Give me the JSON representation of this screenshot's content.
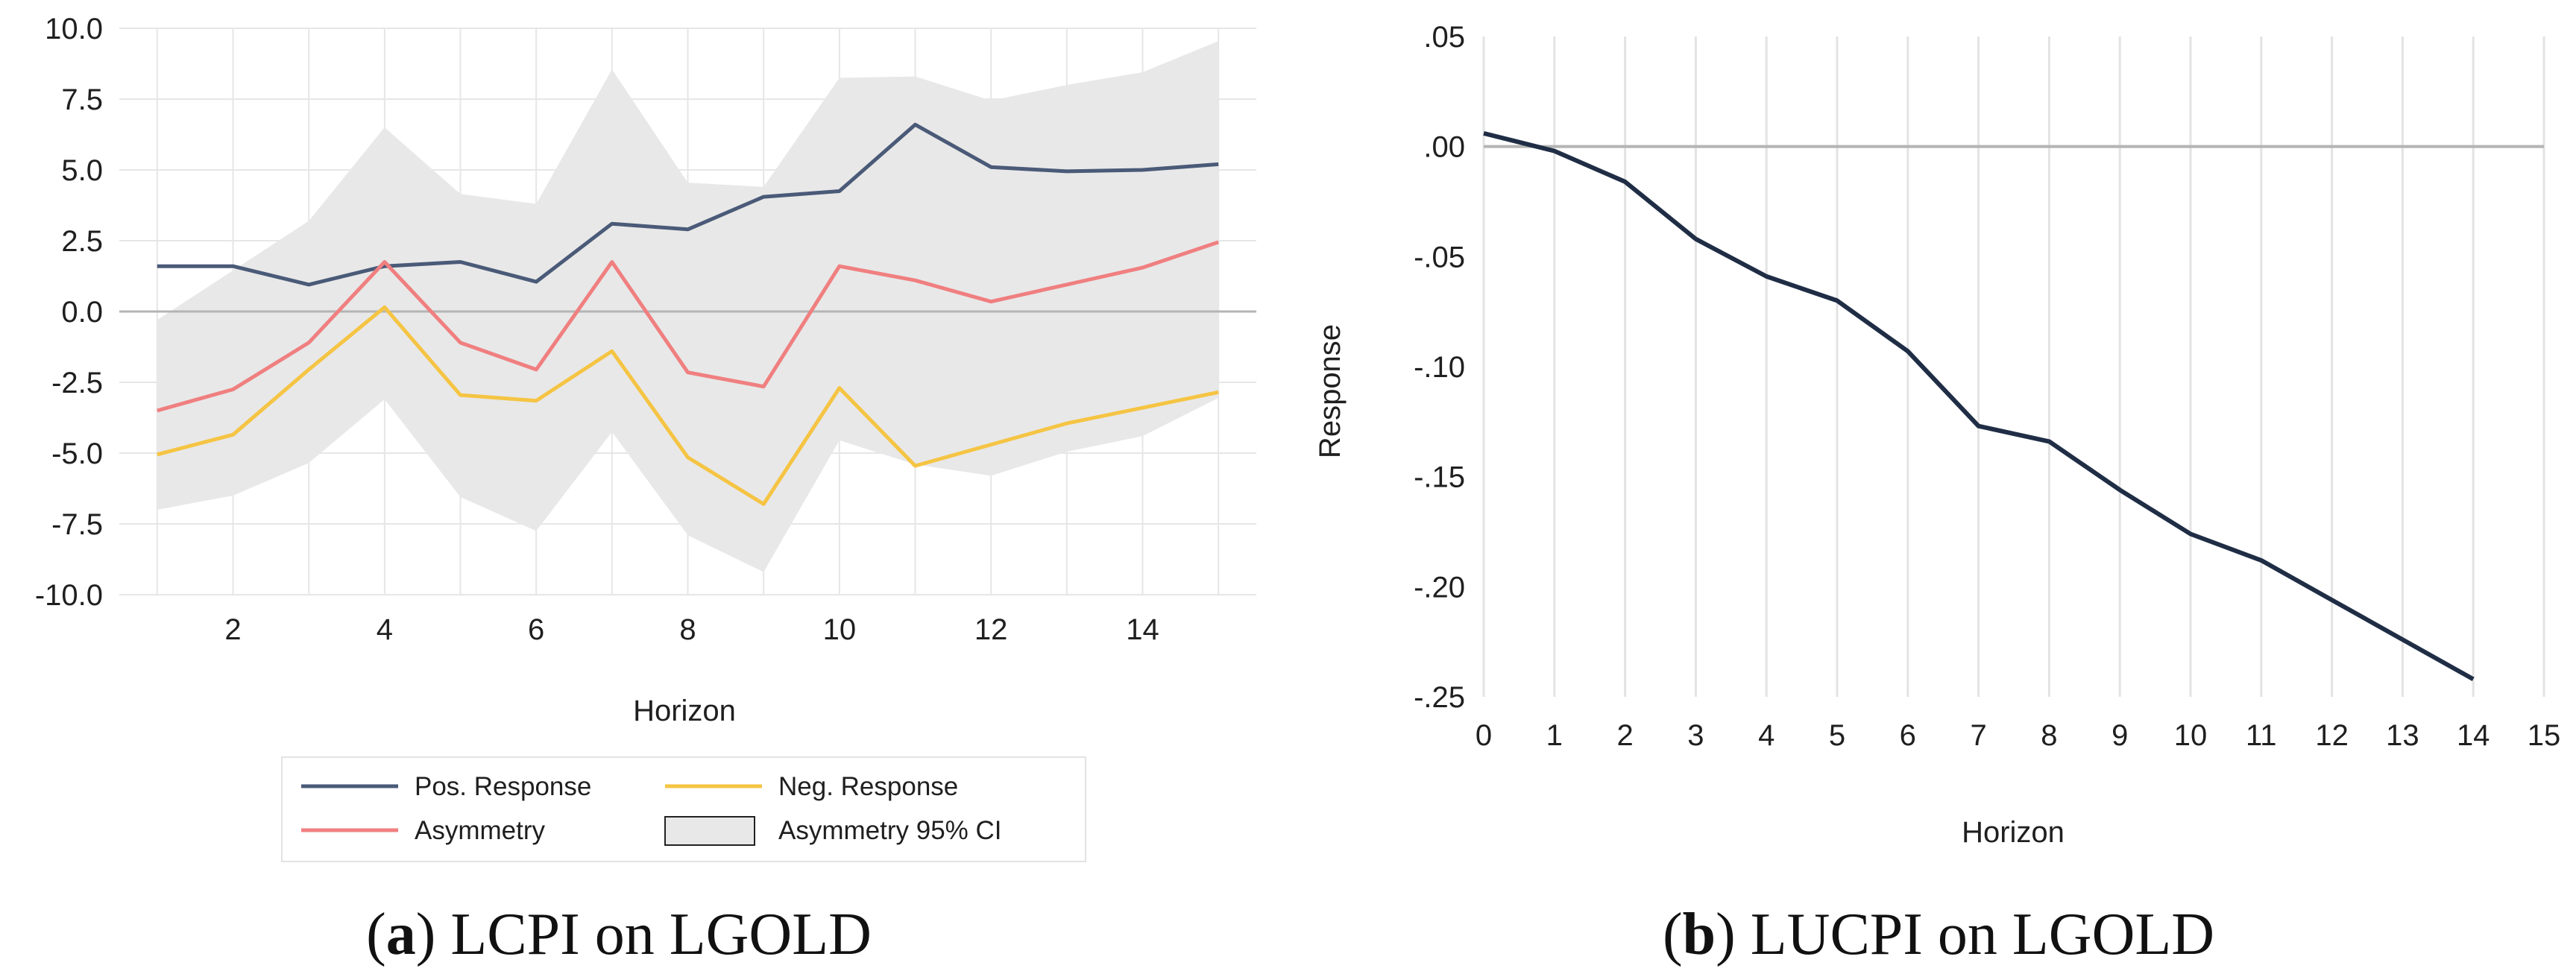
{
  "chart_data": [
    {
      "id": "a",
      "type": "line",
      "caption_letter": "a",
      "caption_text": "LCPI on LGOLD",
      "title": "",
      "xlabel": "Horizon",
      "ylabel": "",
      "xlim": [
        0.5,
        15.5
      ],
      "ylim": [
        -10,
        10
      ],
      "xticks": [
        2,
        4,
        6,
        8,
        10,
        12,
        14
      ],
      "yticks": [
        10,
        7.5,
        5,
        2.5,
        0,
        -2.5,
        -5,
        -7.5,
        -10
      ],
      "ytick_labels": [
        "10.0",
        "7.5",
        "5.0",
        "2.5",
        "0.0",
        "-2.5",
        "-5.0",
        "-7.5",
        "-10.0"
      ],
      "grid": true,
      "x": [
        1,
        2,
        3,
        4,
        5,
        6,
        7,
        8,
        9,
        10,
        11,
        12,
        13,
        14,
        15
      ],
      "series": [
        {
          "name": "Pos. Response",
          "color": "#4a5a78",
          "values": [
            1.6,
            1.6,
            0.95,
            1.6,
            1.75,
            1.05,
            3.1,
            2.9,
            4.05,
            4.25,
            6.6,
            5.1,
            4.95,
            5.0,
            5.2
          ]
        },
        {
          "name": "Asymmetry",
          "color": "#f07f80",
          "values": [
            -3.5,
            -2.75,
            -1.1,
            1.75,
            -1.1,
            -2.05,
            1.75,
            -2.15,
            -2.65,
            1.6,
            1.1,
            0.35,
            0.95,
            1.55,
            2.45
          ]
        },
        {
          "name": "Neg. Response",
          "color": "#f5c443",
          "values": [
            -5.05,
            -4.35,
            -2.05,
            0.15,
            -2.95,
            -3.15,
            -1.4,
            -5.15,
            -6.8,
            -2.7,
            -5.45,
            -4.7,
            -3.95,
            -3.4,
            -2.85
          ]
        }
      ],
      "band": {
        "name": "Asymmetry 95% CI",
        "color": "#e8e8e8",
        "lower": [
          -7.0,
          -6.5,
          -5.35,
          -3.1,
          -6.55,
          -7.75,
          -4.25,
          -7.9,
          -9.2,
          -4.55,
          -5.4,
          -5.8,
          -4.95,
          -4.4,
          -3.05
        ],
        "upper": [
          -0.3,
          1.45,
          3.2,
          6.5,
          4.15,
          3.8,
          8.55,
          4.55,
          4.4,
          8.25,
          8.3,
          7.45,
          8.0,
          8.45,
          9.55
        ]
      },
      "legend": [
        {
          "label": "Pos. Response",
          "kind": "line",
          "color": "#4a5a78"
        },
        {
          "label": "Neg. Response",
          "kind": "line",
          "color": "#f5c443"
        },
        {
          "label": "Asymmetry",
          "kind": "line",
          "color": "#f07f80"
        },
        {
          "label": "Asymmetry 95% CI",
          "kind": "box",
          "color": "#e8e8e8"
        }
      ],
      "legend_position": "bottom"
    },
    {
      "id": "b",
      "type": "line",
      "caption_letter": "b",
      "caption_text": "LUCPI on LGOLD",
      "title": "",
      "xlabel": "Horizon",
      "ylabel": "Response",
      "xlim": [
        0,
        15
      ],
      "ylim": [
        -0.25,
        0.05
      ],
      "xticks": [
        0,
        1,
        2,
        3,
        4,
        5,
        6,
        7,
        8,
        9,
        10,
        11,
        12,
        13,
        14,
        15
      ],
      "yticks": [
        0.05,
        0,
        -0.05,
        -0.1,
        -0.15,
        -0.2,
        -0.25
      ],
      "ytick_labels": [
        ".05",
        ".00",
        "-.05",
        "-.10",
        "-.15",
        "-.20",
        "-.25"
      ],
      "grid": true,
      "zero_line": true,
      "x": [
        0,
        1,
        2,
        3,
        4,
        5,
        6,
        7,
        8,
        9,
        10,
        11,
        12,
        13,
        14
      ],
      "series": [
        {
          "name": "Response",
          "color": "#1f2d45",
          "values": [
            0.006,
            -0.002,
            -0.016,
            -0.042,
            -0.059,
            -0.07,
            -0.093,
            -0.127,
            -0.134,
            -0.156,
            -0.176,
            -0.188,
            -0.206,
            -0.224,
            -0.242
          ]
        }
      ]
    }
  ]
}
